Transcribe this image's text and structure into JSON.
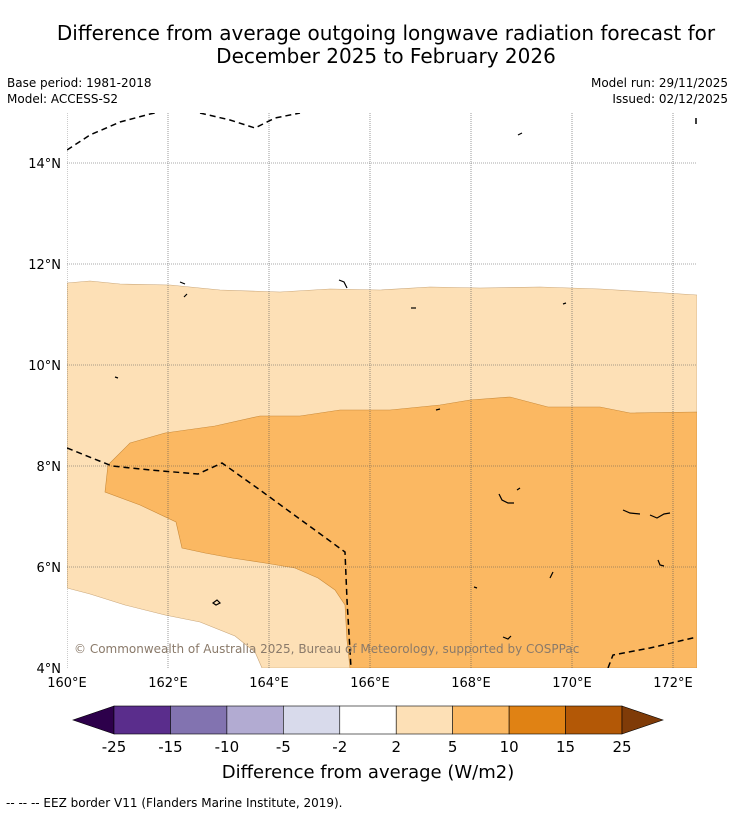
{
  "title": {
    "line1": "Difference from average outgoing longwave radiation forecast for",
    "line2": "December 2025 to February 2026"
  },
  "meta": {
    "base_period": "Base period: 1981-2018",
    "model": "Model: ACCESS-S2",
    "model_run": "Model run: 29/11/2025",
    "issued": "Issued: 02/12/2025"
  },
  "map": {
    "lat_labels": [
      "14°N",
      "12°N",
      "10°N",
      "8°N",
      "6°N",
      "4°N"
    ],
    "lon_labels": [
      "160°E",
      "162°E",
      "164°E",
      "166°E",
      "168°E",
      "170°E",
      "172°E"
    ],
    "copyright": "© Commonwealth of Australia 2025, Bureau of Meteorology, supported by COSPPac"
  },
  "colorbar": {
    "label": "Difference from average (W/m2)",
    "ticks": [
      "-25",
      "-15",
      "-10",
      "-5",
      "-2",
      "2",
      "5",
      "10",
      "15",
      "25"
    ],
    "colors": [
      "#2d004b",
      "#5a2d8c",
      "#8273b0",
      "#b2abd2",
      "#d8daeb",
      "#ffffff",
      "#fde0b6",
      "#fbb862",
      "#e08214",
      "#b35806",
      "#7f3b08"
    ]
  },
  "footer": {
    "eez_note": "--  --  -- EEZ border V11 (Flanders Marine Institute, 2019)."
  }
}
